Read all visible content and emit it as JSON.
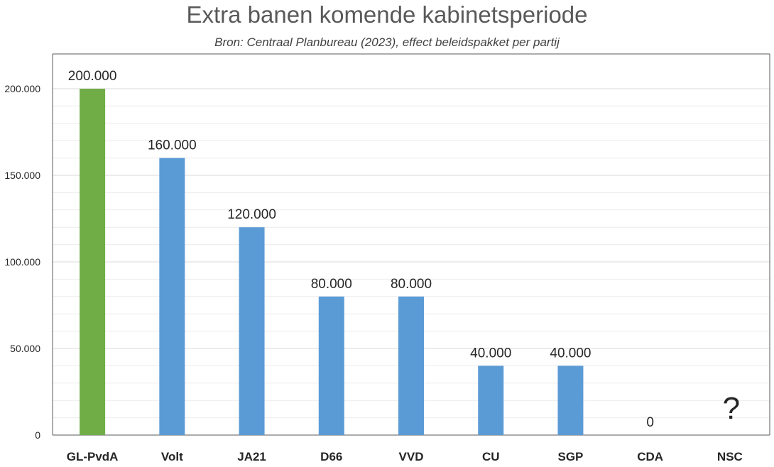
{
  "chart_data": {
    "type": "bar",
    "title": "Extra banen komende kabinetsperiode",
    "subtitle": "Bron: Centraal Planbureau (2023), effect beleidspakket per partij",
    "xlabel": "",
    "ylabel": "",
    "ylim": [
      0,
      200000
    ],
    "grid": true,
    "y_ticks": [
      "0",
      "50.000",
      "100.000",
      "150.000",
      "200.000"
    ],
    "y_tick_values": [
      0,
      50000,
      100000,
      150000,
      200000
    ],
    "categories": [
      "GL-PvdA",
      "Volt",
      "JA21",
      "D66",
      "VVD",
      "CU",
      "SGP",
      "CDA",
      "NSC"
    ],
    "values": [
      200000,
      160000,
      120000,
      80000,
      80000,
      40000,
      40000,
      0,
      null
    ],
    "data_labels": [
      "200.000",
      "160.000",
      "120.000",
      "80.000",
      "80.000",
      "40.000",
      "40.000",
      "0",
      ""
    ],
    "annotations": [
      {
        "category": "NSC",
        "text": "?"
      }
    ],
    "colors": {
      "highlight": "#70ad47",
      "default": "#5b9bd5",
      "grid": "#d9d9d9",
      "axis": "#595959"
    },
    "bar_colors": [
      "highlight",
      "default",
      "default",
      "default",
      "default",
      "default",
      "default",
      "default",
      "default"
    ]
  }
}
